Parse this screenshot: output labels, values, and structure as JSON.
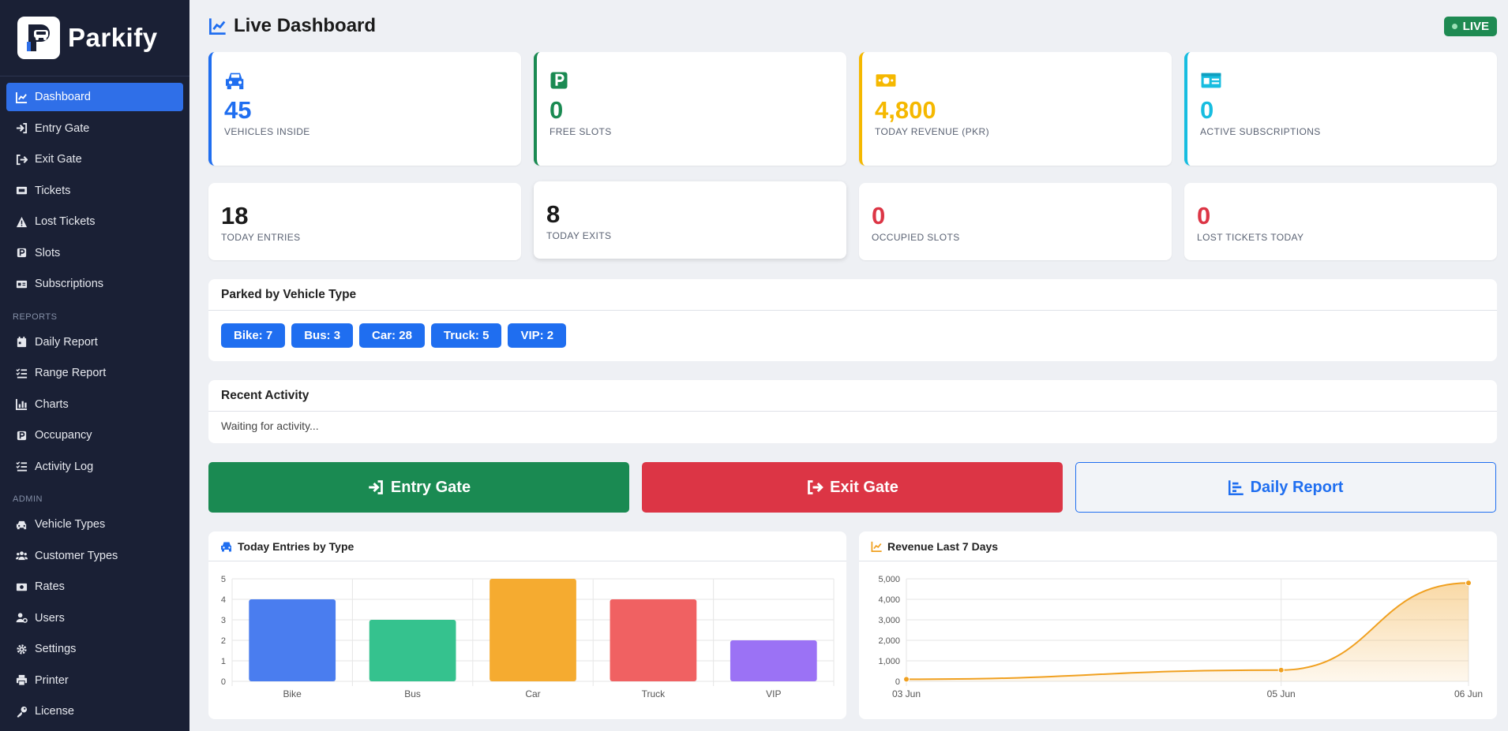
{
  "brand": {
    "name": "Parkify"
  },
  "sidebar": {
    "main_items": [
      {
        "label": "Dashboard",
        "icon": "chart-line-icon",
        "active": true
      },
      {
        "label": "Entry Gate",
        "icon": "sign-in-icon"
      },
      {
        "label": "Exit Gate",
        "icon": "sign-out-icon"
      },
      {
        "label": "Tickets",
        "icon": "ticket-icon"
      },
      {
        "label": "Lost Tickets",
        "icon": "warning-icon"
      },
      {
        "label": "Slots",
        "icon": "parking-icon"
      },
      {
        "label": "Subscriptions",
        "icon": "id-card-icon"
      }
    ],
    "reports_label": "REPORTS",
    "report_items": [
      {
        "label": "Daily Report",
        "icon": "calendar-icon"
      },
      {
        "label": "Range Report",
        "icon": "list-check-icon"
      },
      {
        "label": "Charts",
        "icon": "bar-chart-icon"
      },
      {
        "label": "Occupancy",
        "icon": "parking-icon"
      },
      {
        "label": "Activity Log",
        "icon": "list-icon"
      }
    ],
    "admin_label": "ADMIN",
    "admin_items": [
      {
        "label": "Vehicle Types",
        "icon": "car-icon"
      },
      {
        "label": "Customer Types",
        "icon": "users-icon"
      },
      {
        "label": "Rates",
        "icon": "money-icon"
      },
      {
        "label": "Users",
        "icon": "user-gear-icon"
      },
      {
        "label": "Settings",
        "icon": "gear-icon"
      },
      {
        "label": "Printer",
        "icon": "printer-icon"
      },
      {
        "label": "License",
        "icon": "key-icon"
      }
    ]
  },
  "header": {
    "title": "Live Dashboard",
    "live_label": "LIVE"
  },
  "stats_top": [
    {
      "value": "45",
      "label": "VEHICLES INSIDE",
      "color": "#1f6ef0",
      "icon": "car-icon"
    },
    {
      "value": "0",
      "label": "FREE SLOTS",
      "color": "#1a8a52",
      "icon": "parking-icon"
    },
    {
      "value": "4,800",
      "label": "TODAY REVENUE (PKR)",
      "color": "#f5b800",
      "icon": "money-icon"
    },
    {
      "value": "0",
      "label": "ACTIVE SUBSCRIPTIONS",
      "color": "#17bde0",
      "icon": "id-card-icon"
    }
  ],
  "stats_bottom": [
    {
      "value": "18",
      "label": "TODAY ENTRIES",
      "color": "#1a1a1a"
    },
    {
      "value": "8",
      "label": "TODAY EXITS",
      "color": "#1a1a1a"
    },
    {
      "value": "0",
      "label": "OCCUPIED SLOTS",
      "color": "#dc3545"
    },
    {
      "value": "0",
      "label": "LOST TICKETS TODAY",
      "color": "#dc3545"
    }
  ],
  "parked_panel": {
    "title": "Parked by Vehicle Type",
    "chips": [
      "Bike: 7",
      "Bus: 3",
      "Car: 28",
      "Truck: 5",
      "VIP: 2"
    ]
  },
  "activity_panel": {
    "title": "Recent Activity",
    "text": "Waiting for activity..."
  },
  "actions": {
    "entry": "Entry Gate",
    "exit": "Exit Gate",
    "report": "Daily Report"
  },
  "chart_data": [
    {
      "type": "bar",
      "title": "Today Entries by Type",
      "categories": [
        "Bike",
        "Bus",
        "Car",
        "Truck",
        "VIP"
      ],
      "values": [
        4,
        3,
        5,
        4,
        2
      ],
      "colors": [
        "#4a7def",
        "#35c28e",
        "#f5ab30",
        "#f06162",
        "#9b72f5"
      ],
      "ylim": [
        0,
        5
      ],
      "yticks": [
        "0",
        "1",
        "2",
        "3",
        "4",
        "5"
      ],
      "grid": true
    },
    {
      "type": "line",
      "title": "Revenue Last 7 Days",
      "x": [
        "03 Jun",
        "05 Jun",
        "06 Jun"
      ],
      "values": [
        100,
        550,
        4800
      ],
      "color": "#f0a020",
      "ylim": [
        0,
        5000
      ],
      "yticks": [
        "0",
        "1,000",
        "2,000",
        "3,000",
        "4,000",
        "5,000"
      ],
      "grid": true,
      "fill": true
    }
  ]
}
